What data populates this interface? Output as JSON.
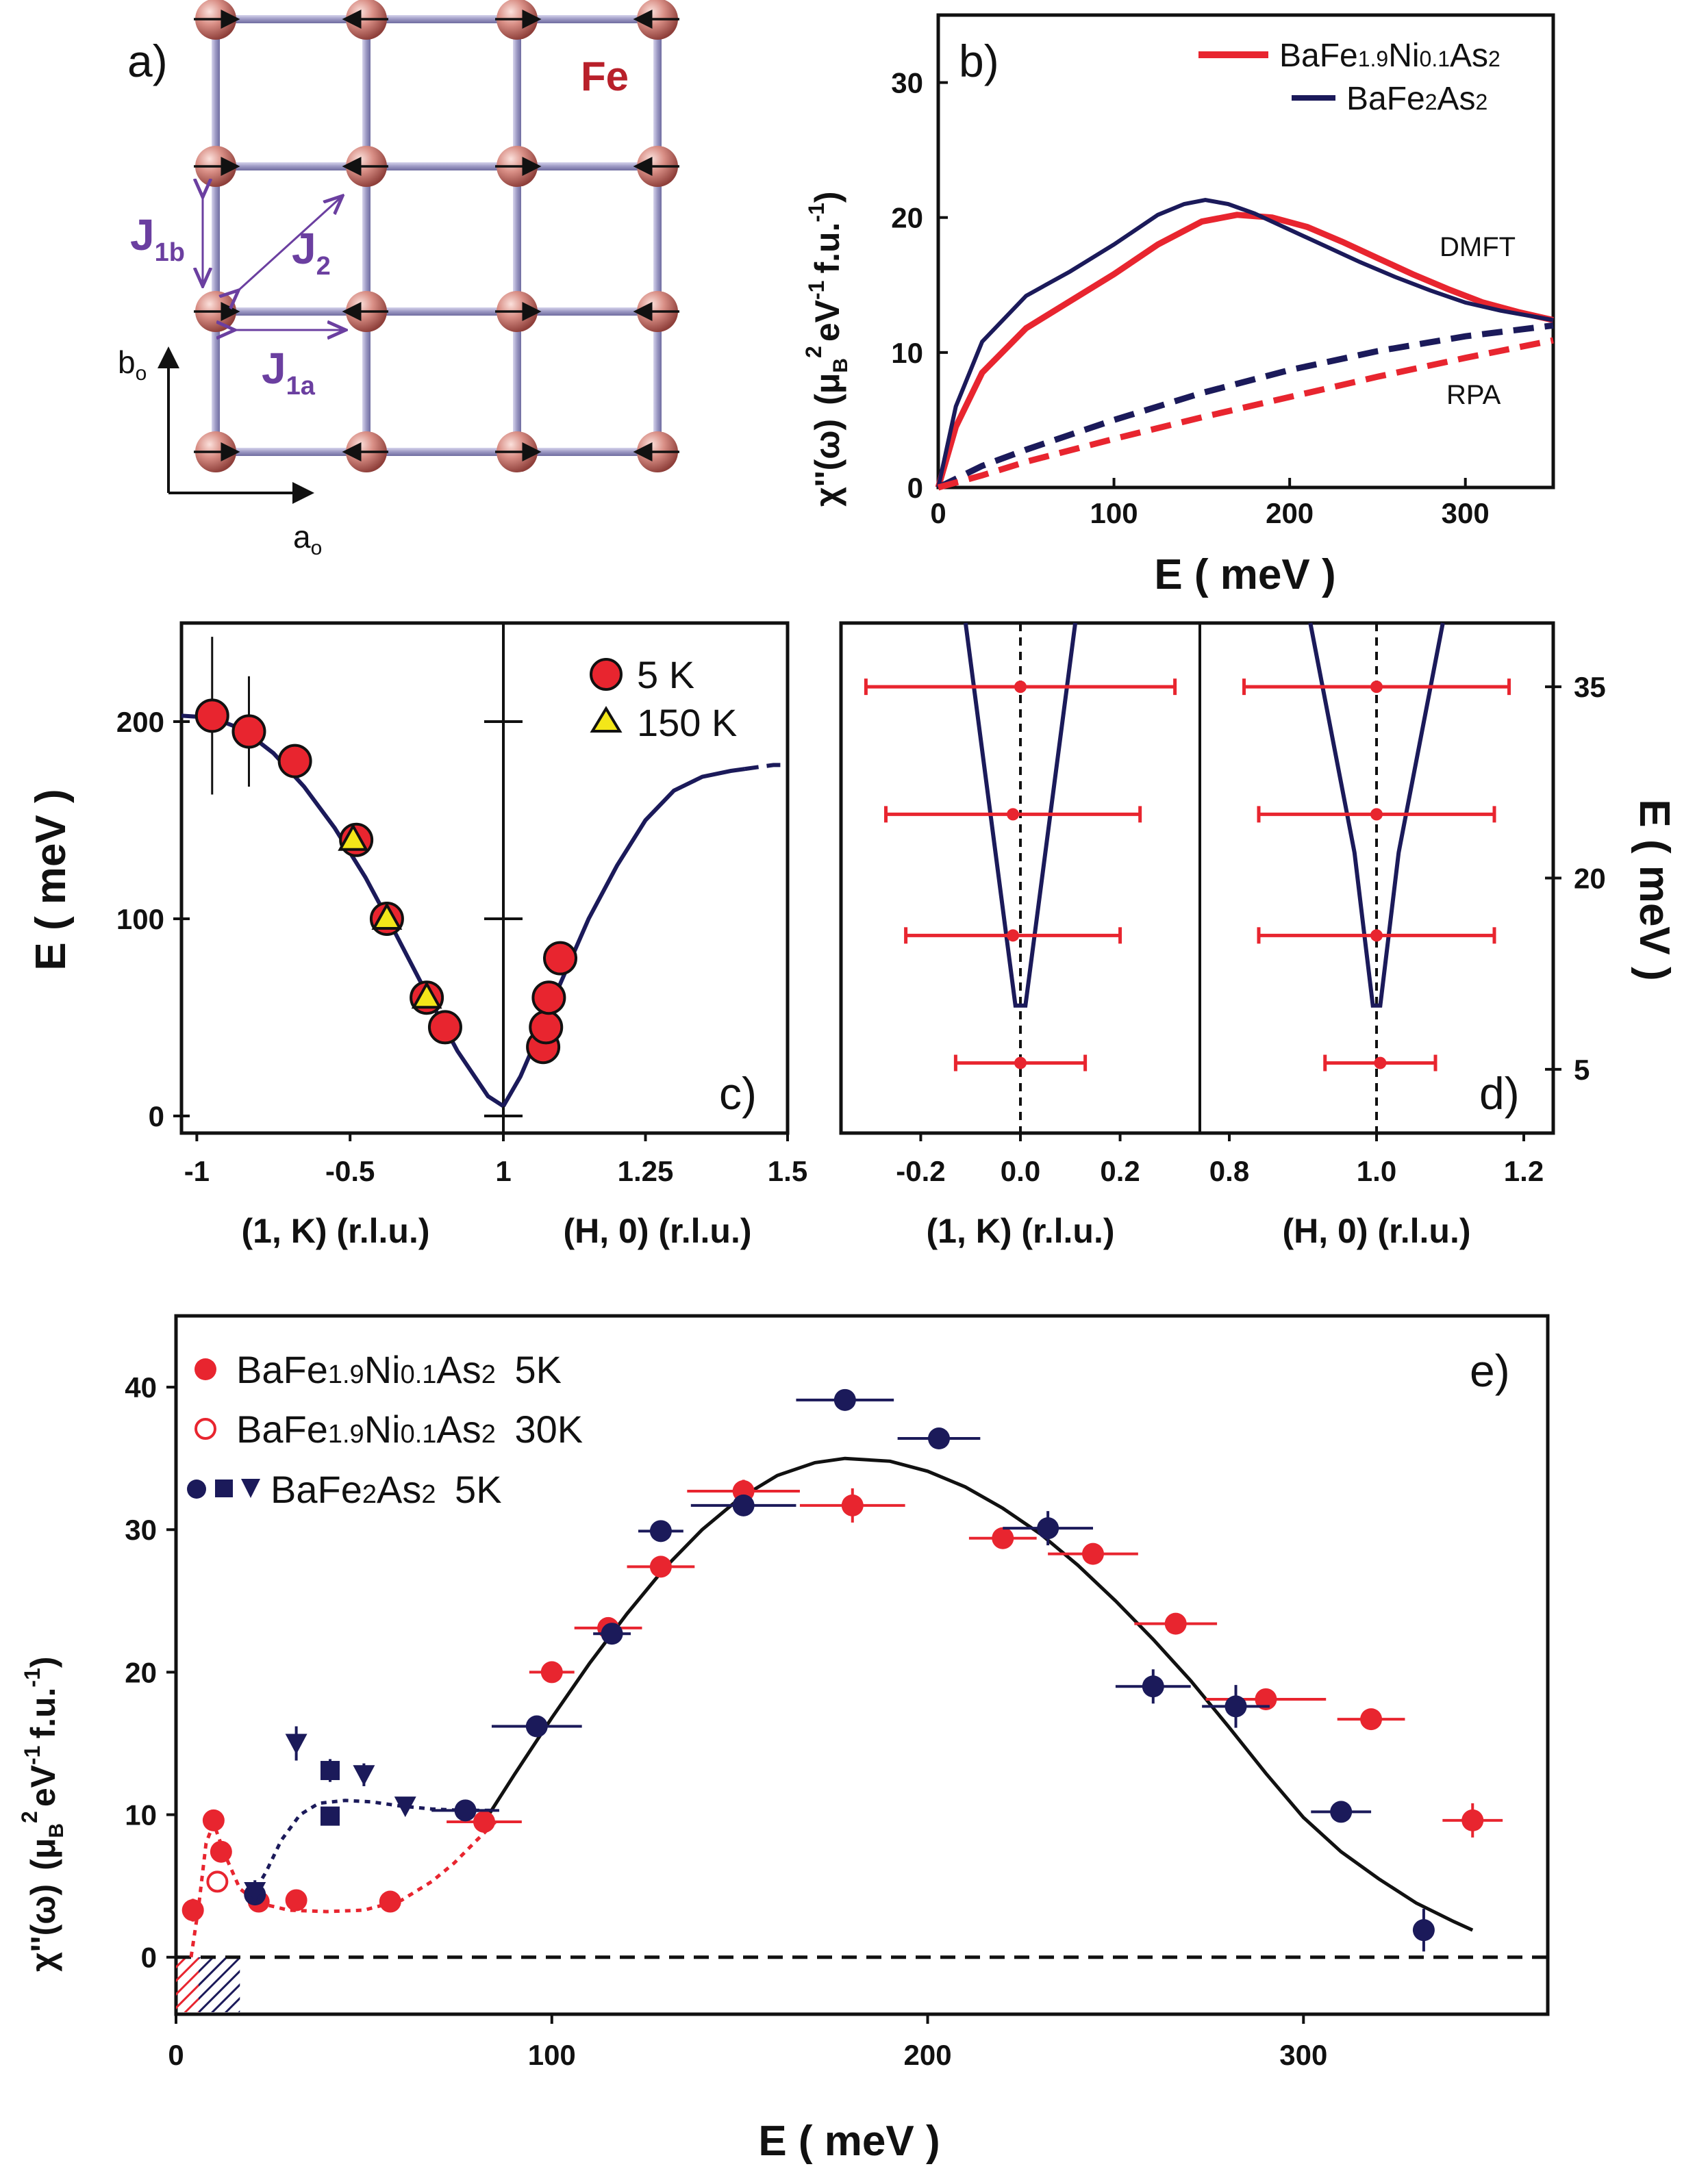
{
  "colors": {
    "red": "#e8252f",
    "navy": "#1b1a5a",
    "black": "#111111",
    "yellow": "#f3e619",
    "purple": "#6b3fa0"
  },
  "panel_a": {
    "label": "a)",
    "fe_label": "Fe",
    "j1b_main": "J",
    "j1b_sub": "1b",
    "j2_main": "J",
    "j2_sub": "2",
    "j1a_main": "J",
    "j1a_sub": "1a",
    "b_main": "b",
    "b_sub": "o",
    "a_main": "a",
    "a_sub": "o",
    "icons": [
      "fe-atom-icon",
      "spin-arrow-icon"
    ]
  },
  "chart_data": [
    {
      "id": "b",
      "type": "line",
      "panel_label": "b)",
      "xlabel": "E ( meV )",
      "ylabel": "χ''(ω) (μB² eV⁻¹ f.u.⁻¹)",
      "ylabel_parts": {
        "chi": "χ''(ω)",
        "mu": "(μ",
        "b": "B",
        "two": "2",
        "ev": "eV",
        "m1": "-1",
        "fu": "f.u.",
        "m1b": "-1",
        "close": ")"
      },
      "xlim": [
        0,
        350
      ],
      "ylim": [
        0,
        35
      ],
      "xticks": [
        0,
        100,
        200,
        300
      ],
      "yticks": [
        0,
        10,
        20,
        30
      ],
      "legend_position": "top-right",
      "legend": [
        {
          "text": "BaFe1.9Ni0.1As2",
          "parts": [
            "BaFe",
            "1.9",
            "Ni",
            "0.1",
            "As",
            "2"
          ],
          "color": "#e8252f"
        },
        {
          "text": "BaFe2As2",
          "parts": [
            "BaFe",
            "2",
            "As",
            "2"
          ],
          "color": "#1b1a5a"
        }
      ],
      "annotations": [
        "DMFT",
        "RPA"
      ],
      "series": [
        {
          "name": "BaFe1.9Ni0.1As2 DMFT",
          "color": "#e8252f",
          "dash": false,
          "x": [
            0,
            10,
            25,
            50,
            75,
            100,
            125,
            150,
            170,
            190,
            210,
            230,
            250,
            270,
            290,
            310,
            330,
            350
          ],
          "y": [
            0,
            4.5,
            8.5,
            11.8,
            13.8,
            15.8,
            18.0,
            19.7,
            20.2,
            20.0,
            19.3,
            18.2,
            17.0,
            15.8,
            14.7,
            13.7,
            13.0,
            12.4
          ]
        },
        {
          "name": "BaFe2As2 DMFT",
          "color": "#1b1a5a",
          "dash": false,
          "x": [
            0,
            10,
            25,
            50,
            75,
            100,
            125,
            140,
            152,
            165,
            180,
            200,
            220,
            240,
            260,
            280,
            300,
            320,
            350
          ],
          "y": [
            0,
            6.0,
            10.8,
            14.2,
            16.0,
            18.0,
            20.2,
            21.0,
            21.3,
            21.0,
            20.3,
            19.1,
            17.9,
            16.7,
            15.6,
            14.6,
            13.7,
            13.1,
            12.4
          ]
        },
        {
          "name": "BaFe2As2 RPA",
          "color": "#1b1a5a",
          "dash": true,
          "x": [
            0,
            25,
            50,
            100,
            150,
            200,
            250,
            300,
            350
          ],
          "y": [
            0,
            1.6,
            2.8,
            5.0,
            7.0,
            8.7,
            10.1,
            11.2,
            12.0
          ]
        },
        {
          "name": "BaFe1.9Ni0.1As2 RPA",
          "color": "#e8252f",
          "dash": true,
          "x": [
            0,
            25,
            50,
            100,
            150,
            200,
            250,
            300,
            350
          ],
          "y": [
            0,
            0.9,
            1.9,
            3.6,
            5.2,
            6.7,
            8.2,
            9.6,
            10.9
          ]
        }
      ]
    },
    {
      "id": "c",
      "type": "scatter",
      "panel_label": "c)",
      "ylabel": "E ( meV )",
      "xlabel_left": "(1, K) (r.l.u.)",
      "xlabel_right": "(H, 0) (r.l.u.)",
      "ylim": [
        0,
        250
      ],
      "left_xlim": [
        -1.05,
        0
      ],
      "right_xlim": [
        1,
        1.5
      ],
      "left_xtick_labels": [
        {
          "v": -1,
          "t": "-1"
        },
        {
          "v": -0.5,
          "t": "-0.5"
        }
      ],
      "right_xtick_labels": [
        {
          "v": 1,
          "t": "1"
        },
        {
          "v": 1.25,
          "t": "1.25"
        },
        {
          "v": 1.5,
          "t": "1.5"
        }
      ],
      "yticks": [
        0,
        100,
        200
      ],
      "legend_position": "top-right",
      "legend": [
        {
          "text": "5 K",
          "marker": "circle",
          "color": "#e8252f"
        },
        {
          "text": "150 K",
          "marker": "triangle",
          "color": "#f3e619"
        }
      ],
      "dispersion": {
        "left": {
          "x": [
            -1.05,
            -0.95,
            -0.85,
            -0.75,
            -0.65,
            -0.55,
            -0.45,
            -0.35,
            -0.25,
            -0.15,
            -0.05,
            0
          ],
          "y": [
            203,
            202,
            196,
            184,
            167,
            146,
            121,
            92,
            62,
            33,
            10,
            5
          ]
        },
        "right_solid": {
          "x": [
            1,
            1.03,
            1.06,
            1.1,
            1.15,
            1.2,
            1.25,
            1.3,
            1.35,
            1.4,
            1.425
          ],
          "y": [
            5,
            20,
            40,
            67,
            100,
            127,
            150,
            165,
            172,
            175,
            176
          ]
        },
        "right_dashed": {
          "x": [
            1.425,
            1.45,
            1.475,
            1.5
          ],
          "y": [
            176,
            177,
            178,
            178
          ]
        }
      },
      "series": [
        {
          "name": "5 K",
          "color": "#e8252f",
          "marker": "circle",
          "left": [
            {
              "k": -0.95,
              "e": 203,
              "err": 40
            },
            {
              "k": -0.83,
              "e": 195,
              "err": 28
            },
            {
              "k": -0.68,
              "e": 180,
              "err": 0
            },
            {
              "k": -0.48,
              "e": 140,
              "err": 0
            },
            {
              "k": -0.38,
              "e": 100,
              "err": 0
            },
            {
              "k": -0.25,
              "e": 60,
              "err": 0
            },
            {
              "k": -0.19,
              "e": 45,
              "err": 0
            }
          ],
          "right": [
            {
              "h": 1.07,
              "e": 35
            },
            {
              "h": 1.075,
              "e": 45
            },
            {
              "h": 1.08,
              "e": 60
            },
            {
              "h": 1.1,
              "e": 80
            }
          ]
        },
        {
          "name": "150 K",
          "color": "#f3e619",
          "marker": "triangle",
          "left": [
            {
              "k": -0.49,
              "e": 140
            },
            {
              "k": -0.38,
              "e": 100
            },
            {
              "k": -0.25,
              "e": 60
            }
          ]
        }
      ]
    },
    {
      "id": "d",
      "type": "scatter",
      "panel_label": "d)",
      "ylabel": "E ( meV )",
      "xlabel_left": "(1, K) (r.l.u.)",
      "xlabel_right": "(H, 0) (r.l.u.)",
      "ylim": [
        0,
        40
      ],
      "yticks": [
        5,
        20,
        35
      ],
      "left_xlim": [
        -0.36,
        0.36
      ],
      "right_xlim": [
        0.76,
        1.24
      ],
      "left_xtick_labels": [
        {
          "v": -0.2,
          "t": "-0.2"
        },
        {
          "v": 0.0,
          "t": "0.0"
        },
        {
          "v": 0.2,
          "t": "0.2"
        }
      ],
      "right_xtick_labels": [
        {
          "v": 0.8,
          "t": "0.8"
        },
        {
          "v": 1.0,
          "t": "1.0"
        },
        {
          "v": 1.2,
          "t": "1.2"
        }
      ],
      "series": [
        {
          "name": "(1, K) widths",
          "color": "#e8252f",
          "points": [
            {
              "e": 35,
              "lo": -0.31,
              "hi": 0.31
            },
            {
              "e": 25,
              "lo": -0.27,
              "hi": 0.24
            },
            {
              "e": 15.5,
              "lo": -0.23,
              "hi": 0.2
            },
            {
              "e": 5.5,
              "lo": -0.13,
              "hi": 0.13
            }
          ]
        },
        {
          "name": "(H, 0) widths",
          "color": "#e8252f",
          "points": [
            {
              "e": 35,
              "lo": 0.82,
              "hi": 1.18
            },
            {
              "e": 25,
              "lo": 0.84,
              "hi": 1.16
            },
            {
              "e": 15.5,
              "lo": 0.84,
              "hi": 1.16
            },
            {
              "e": 5.5,
              "lo": 0.93,
              "hi": 1.08
            }
          ]
        }
      ],
      "cone_left": {
        "x": [
          -0.11,
          -0.05,
          -0.01,
          0.01,
          0.05,
          0.11
        ],
        "y": [
          40,
          22,
          10,
          10,
          22,
          40
        ]
      },
      "cone_right": {
        "x": [
          0.91,
          0.97,
          0.995,
          1.005,
          1.03,
          1.09
        ],
        "y": [
          40,
          22,
          10,
          10,
          22,
          40
        ]
      }
    },
    {
      "id": "e",
      "type": "scatter",
      "panel_label": "e)",
      "xlabel": "E ( meV )",
      "ylabel": "χ''(ω) (μB² eV⁻¹ f.u.⁻¹)",
      "ylabel_parts": {
        "chi": "χ''(ω)",
        "mu": "(μ",
        "b": "B",
        "two": "2",
        "ev": "eV",
        "m1": "-1",
        "fu": "f.u.",
        "m1b": "-1",
        "close": ")"
      },
      "xlim": [
        0,
        360
      ],
      "ylim": [
        -4,
        45
      ],
      "xticks": [
        0,
        100,
        200,
        300
      ],
      "yticks": [
        0,
        10,
        20,
        30,
        40
      ],
      "legend_position": "top-left",
      "legend": [
        {
          "text": "BaFe1.9Ni0.1As2 5K",
          "parts": [
            "BaFe",
            "1.9",
            "Ni",
            "0.1",
            "As",
            "2",
            " 5K"
          ],
          "marker": "filled-circle",
          "color": "#e8252f"
        },
        {
          "text": "BaFe1.9Ni0.1As2 30K",
          "parts": [
            "BaFe",
            "1.9",
            "Ni",
            "0.1",
            "As",
            "2",
            " 30K"
          ],
          "marker": "open-circle",
          "color": "#e8252f"
        },
        {
          "text": "BaFe2As2 5K",
          "parts": [
            "BaFe",
            "2",
            "As",
            "2",
            " 5K"
          ],
          "marker": "circle-square-triangle",
          "color": "#1b1a5a"
        }
      ],
      "series": [
        {
          "name": "BaFe1.9Ni0.1As2 5K",
          "color": "#e8252f",
          "marker": "circle",
          "points": [
            [
              4.5,
              3.3,
              0,
              0.8
            ],
            [
              10,
              9.6,
              0,
              0
            ],
            [
              12,
              7.4,
              0,
              0
            ],
            [
              22,
              3.9,
              0,
              0
            ],
            [
              32,
              4.0,
              0,
              0
            ],
            [
              57,
              3.9,
              0,
              0
            ],
            [
              82,
              9.5,
              10,
              0
            ],
            [
              100,
              20.0,
              6,
              0
            ],
            [
              115,
              23.1,
              9,
              0
            ],
            [
              129,
              27.4,
              9,
              0
            ],
            [
              151,
              32.7,
              15,
              0.8
            ],
            [
              180,
              31.7,
              14,
              1.2
            ],
            [
              220,
              29.4,
              9,
              0
            ],
            [
              244,
              28.3,
              12,
              0
            ],
            [
              266,
              23.4,
              11,
              0
            ],
            [
              290,
              18.1,
              16,
              0
            ],
            [
              318,
              16.7,
              9,
              0
            ],
            [
              345,
              9.6,
              8,
              1.2
            ]
          ]
        },
        {
          "name": "BaFe1.9Ni0.1As2 30K",
          "color": "#e8252f",
          "marker": "open-circle",
          "points": [
            [
              11,
              5.3,
              0,
              0
            ]
          ]
        },
        {
          "name": "BaFe2As2 5K (circles)",
          "color": "#1b1a5a",
          "marker": "circle",
          "points": [
            [
              21,
              4.4,
              0,
              0
            ],
            [
              77,
              10.3,
              9,
              0
            ],
            [
              96,
              16.2,
              12,
              0
            ],
            [
              116,
              22.7,
              5,
              0
            ],
            [
              129,
              29.9,
              6,
              0
            ],
            [
              151,
              31.7,
              14,
              0
            ],
            [
              178,
              39.1,
              13,
              0
            ],
            [
              203,
              36.4,
              11,
              0
            ],
            [
              232,
              30.1,
              12,
              1.2
            ],
            [
              260,
              19.0,
              10,
              1.2
            ],
            [
              282,
              17.6,
              9,
              1.5
            ],
            [
              310,
              10.2,
              8,
              0
            ],
            [
              332,
              1.9,
              0,
              1.5
            ]
          ]
        },
        {
          "name": "BaFe2As2 5K (squares)",
          "color": "#1b1a5a",
          "marker": "square",
          "points": [
            [
              41,
              13.1,
              0,
              0.8
            ],
            [
              41,
              9.9,
              0,
              0
            ]
          ]
        },
        {
          "name": "BaFe2As2 5K (triangles)",
          "color": "#1b1a5a",
          "marker": "triangle-down",
          "points": [
            [
              32,
              15.0,
              0,
              1.2
            ],
            [
              50,
              12.8,
              0,
              0.8
            ],
            [
              61,
              10.6,
              0,
              0
            ],
            [
              21,
              4.6,
              0,
              0.8
            ]
          ]
        }
      ],
      "fit_curve": {
        "x": [
          82,
          90,
          100,
          110,
          120,
          130,
          140,
          150,
          160,
          170,
          178,
          190,
          200,
          210,
          220,
          230,
          240,
          250,
          260,
          270,
          280,
          290,
          300,
          310,
          320,
          330,
          340,
          345
        ],
        "y": [
          9.5,
          12.8,
          16.8,
          20.6,
          24.1,
          27.3,
          30.0,
          32.2,
          33.8,
          34.7,
          35.0,
          34.8,
          34.1,
          33.0,
          31.5,
          29.7,
          27.5,
          25.0,
          22.3,
          19.4,
          16.2,
          12.9,
          9.8,
          7.4,
          5.5,
          3.8,
          2.5,
          1.9
        ]
      },
      "red_dotted": {
        "x": [
          4,
          6,
          8,
          10,
          13,
          17,
          22,
          30,
          40,
          50,
          60,
          68,
          74,
          80,
          85
        ],
        "y": [
          0,
          3.5,
          8.0,
          9.4,
          7.2,
          4.8,
          3.8,
          3.3,
          3.2,
          3.3,
          4.0,
          5.3,
          6.6,
          8.2,
          9.5
        ]
      },
      "navy_dotted": {
        "x": [
          20,
          24,
          28,
          33,
          38,
          45,
          52,
          60,
          68,
          76,
          84
        ],
        "y": [
          4.2,
          6.0,
          8.2,
          10.0,
          10.8,
          11.0,
          10.9,
          10.6,
          10.4,
          10.3,
          10.3
        ]
      },
      "zero_line": 0,
      "hatch_regions": [
        {
          "x0": 0,
          "x1": 6,
          "color": "#e8252f"
        },
        {
          "x0": 6,
          "x1": 17,
          "color": "#1b1a5a"
        }
      ]
    }
  ]
}
